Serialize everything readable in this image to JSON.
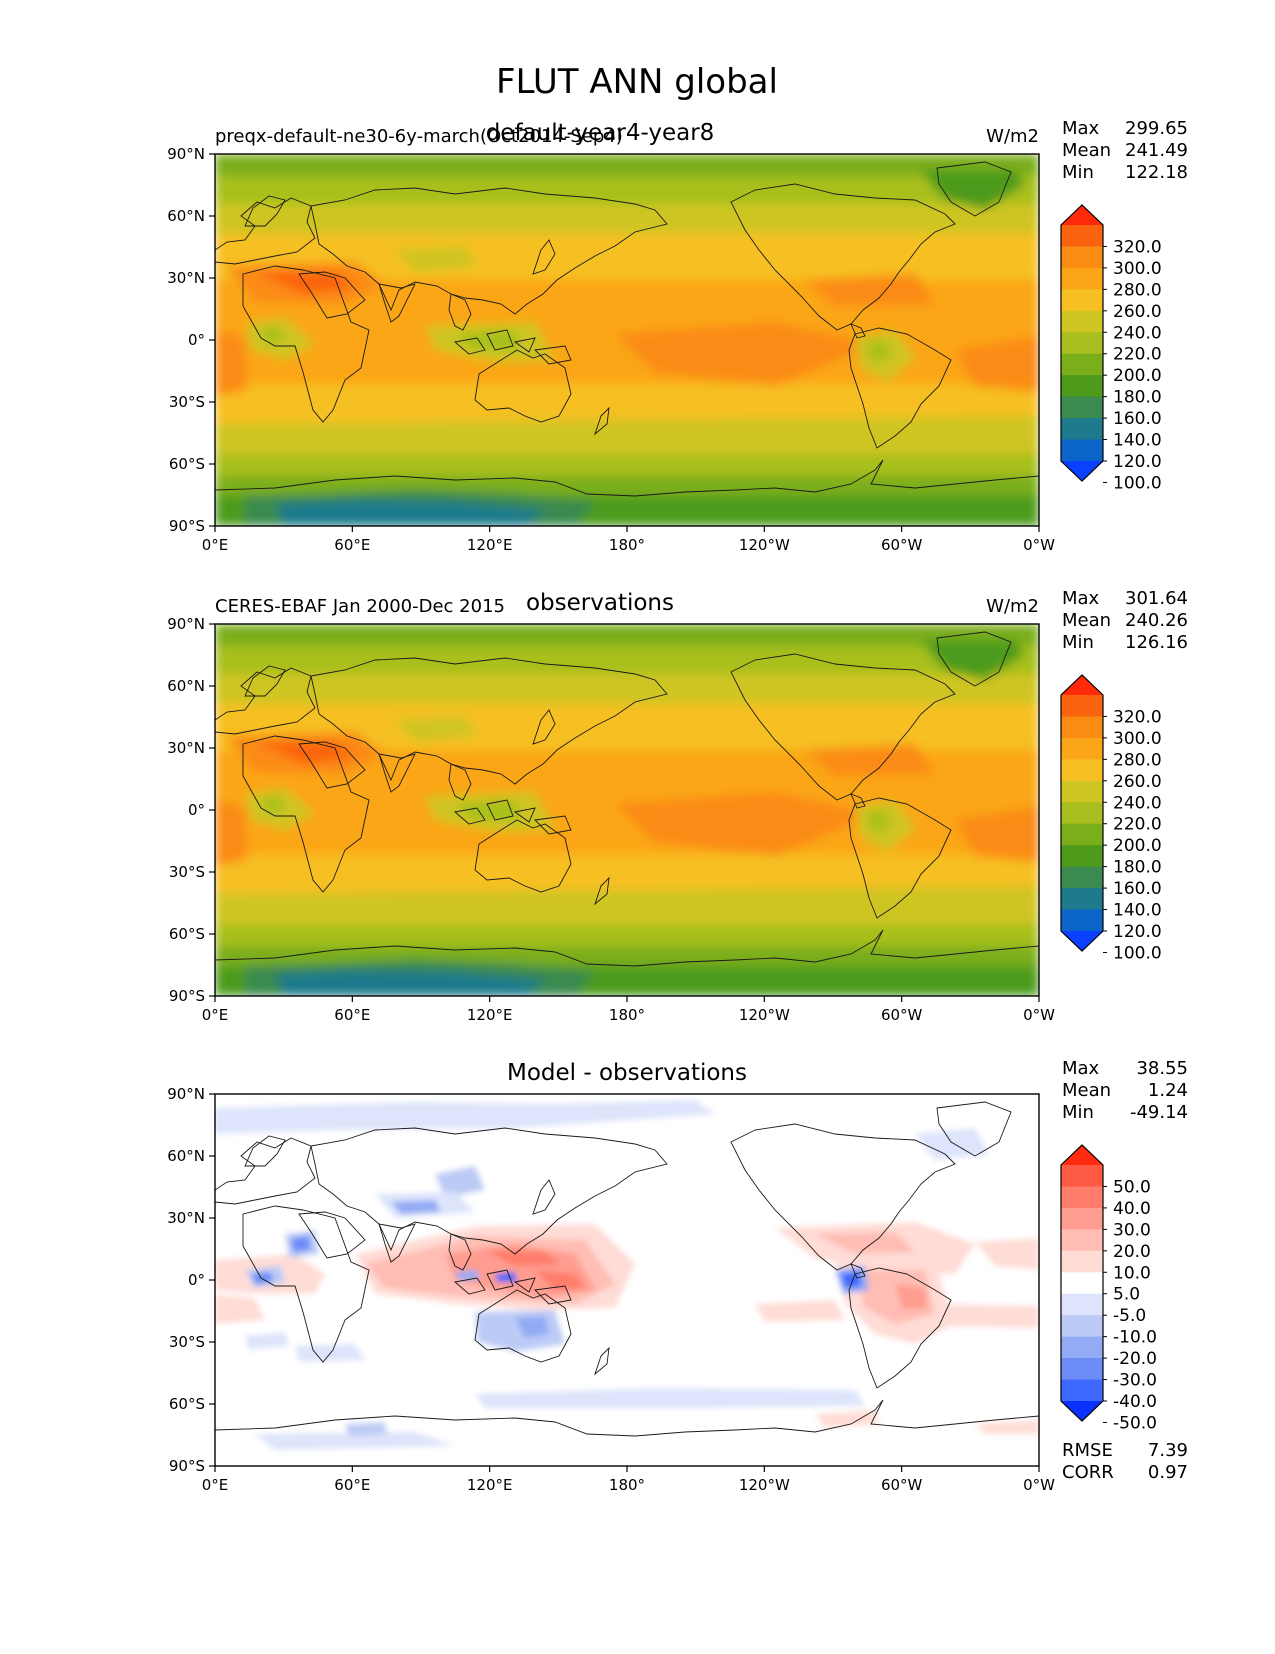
{
  "title": "FLUT ANN global",
  "lat_ticks": [
    "90°N",
    "60°N",
    "30°N",
    "0°",
    "30°S",
    "60°S",
    "90°S"
  ],
  "lon_ticks": [
    "0°E",
    "60°E",
    "120°E",
    "180°",
    "120°W",
    "60°W",
    "0°W"
  ],
  "colors": {
    "abs_levels": [
      "#0a40ff",
      "#0b64c8",
      "#1e7a8c",
      "#3b8a50",
      "#4e9b1c",
      "#7aae1a",
      "#a8bf1f",
      "#cfc523",
      "#f6c022",
      "#fba618",
      "#fb8b12",
      "#fb640e",
      "#ff2a0a"
    ],
    "diff_levels": [
      "#0a32ff",
      "#3e68ff",
      "#6d8cf7",
      "#93abf4",
      "#bccbf6",
      "#dde4fb",
      "#ffffff",
      "#ffdcd6",
      "#ffbdb4",
      "#ff9d90",
      "#ff7d6a",
      "#ff5a44",
      "#ff2a10"
    ]
  },
  "panels": [
    {
      "id": "test",
      "left_label": "preqx-default-ne30-6y-march(Oct2014-Sep4)",
      "center_title": "default-year4-year8",
      "units": "W/m2",
      "stats": [
        {
          "label": "Max",
          "value": "299.65"
        },
        {
          "label": "Mean",
          "value": "241.49"
        },
        {
          "label": "Min",
          "value": "122.18"
        }
      ],
      "colorbar_labels": [
        "320.0",
        "300.0",
        "280.0",
        "260.0",
        "240.0",
        "220.0",
        "200.0",
        "180.0",
        "160.0",
        "140.0",
        "120.0",
        "100.0"
      ],
      "extra_stats": []
    },
    {
      "id": "reference",
      "left_label": "CERES-EBAF Jan 2000-Dec 2015",
      "center_title": "observations",
      "units": "W/m2",
      "stats": [
        {
          "label": "Max",
          "value": "301.64"
        },
        {
          "label": "Mean",
          "value": "240.26"
        },
        {
          "label": "Min",
          "value": "126.16"
        }
      ],
      "colorbar_labels": [
        "320.0",
        "300.0",
        "280.0",
        "260.0",
        "240.0",
        "220.0",
        "200.0",
        "180.0",
        "160.0",
        "140.0",
        "120.0",
        "100.0"
      ],
      "extra_stats": []
    },
    {
      "id": "diff",
      "left_label": "",
      "center_title": "Model - observations",
      "units": "",
      "stats": [
        {
          "label": "Max",
          "value": "38.55"
        },
        {
          "label": "Mean",
          "value": "1.24"
        },
        {
          "label": "Min",
          "value": "-49.14"
        }
      ],
      "colorbar_labels": [
        "50.0",
        "40.0",
        "30.0",
        "20.0",
        "10.0",
        "5.0",
        "-5.0",
        "-10.0",
        "-20.0",
        "-30.0",
        "-40.0",
        "-50.0"
      ],
      "extra_stats": [
        {
          "label": "RMSE",
          "value": "7.39"
        },
        {
          "label": "CORR",
          "value": "0.97"
        }
      ]
    }
  ]
}
